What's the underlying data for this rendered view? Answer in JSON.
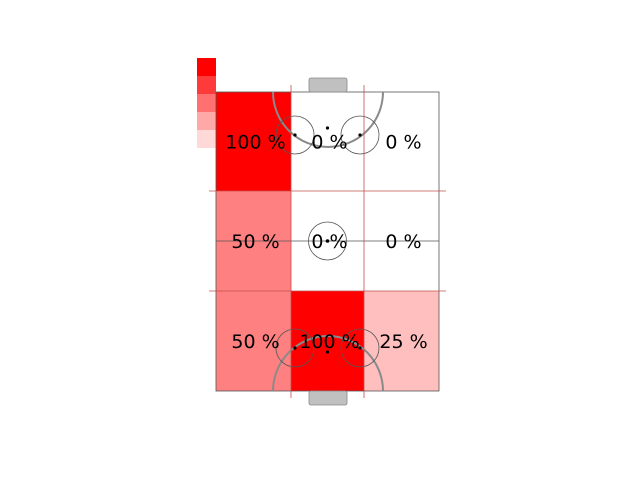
{
  "chart_data": {
    "type": "heatmap",
    "title": "",
    "xlabel": "",
    "ylabel": "",
    "rows": 3,
    "cols": 3,
    "values": [
      [
        100,
        0,
        0
      ],
      [
        50,
        0,
        0
      ],
      [
        50,
        100,
        25
      ]
    ],
    "labels": [
      [
        "100 %",
        "0 %",
        "0 %"
      ],
      [
        "50 %",
        "0 %",
        "0 %"
      ],
      [
        "50 %",
        "100 %",
        "25 %"
      ]
    ],
    "color_min": "#ffffff",
    "color_max": "#ff0000",
    "legend_swatches": [
      "#ff0000",
      "#ff3a3a",
      "#ff7070",
      "#ffa8a8",
      "#ffd8d8"
    ],
    "pitch": {
      "line_color": "#555555",
      "grid_line_color": "#c0504d",
      "goal_color": "#c0c0c0"
    }
  }
}
